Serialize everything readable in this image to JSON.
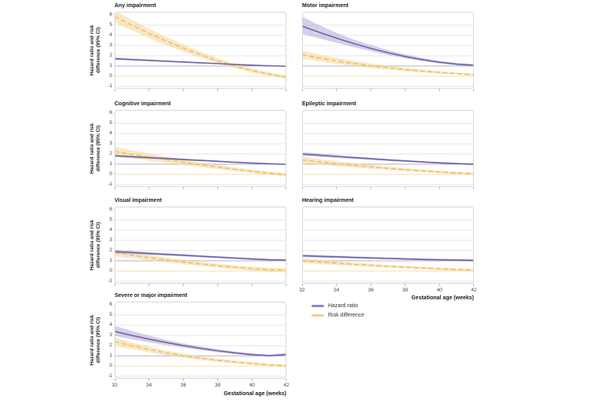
{
  "chart_data": {
    "type": "line",
    "x": [
      32,
      33,
      34,
      35,
      36,
      37,
      38,
      39,
      40,
      41,
      42
    ],
    "xticks": [
      32,
      34,
      36,
      38,
      40,
      42
    ],
    "yticks": [
      6,
      5,
      4,
      3,
      2,
      1,
      0,
      -1
    ],
    "ylim": [
      -1,
      6
    ],
    "xlim": [
      32,
      42
    ],
    "grid": "horizontal",
    "xlabel": "Gestational age (weeks)",
    "ylabel": "Hazard ratio and risk difference (95% CI)",
    "ylabel_lines": [
      "Hazard ratio and risk",
      "difference (95% CI)"
    ],
    "legend_position": "below-right-column",
    "legend": [
      {
        "label": "Hazard ratio",
        "color": "#9186c2"
      },
      {
        "label": "Risk difference",
        "color": "#f5d08b"
      }
    ],
    "reference_lines": [
      {
        "value": 1,
        "series": "Hazard ratio"
      },
      {
        "value": 0,
        "series": "Risk difference"
      }
    ],
    "panels": [
      {
        "title": "Any impairment",
        "row": 0,
        "col": 0,
        "y_axis": true,
        "x_axis": false,
        "series": {
          "hazard_ratio": {
            "y": [
              1.72,
              1.63,
              1.55,
              1.47,
              1.39,
              1.31,
              1.23,
              1.15,
              1.08,
              1.02,
              0.98
            ],
            "lo": [
              1.6,
              1.53,
              1.46,
              1.39,
              1.32,
              1.25,
              1.18,
              1.11,
              1.04,
              0.98,
              0.93
            ],
            "hi": [
              1.84,
              1.73,
              1.64,
              1.55,
              1.46,
              1.37,
              1.28,
              1.19,
              1.12,
              1.06,
              1.03
            ]
          },
          "risk_difference": {
            "y": [
              5.85,
              5.0,
              4.2,
              3.45,
              2.75,
              2.1,
              1.5,
              1.0,
              0.55,
              0.2,
              -0.1
            ],
            "lo": [
              5.25,
              4.5,
              3.75,
              3.05,
              2.4,
              1.8,
              1.25,
              0.78,
              0.35,
              0.02,
              -0.28
            ],
            "hi": [
              6.45,
              5.5,
              4.65,
              3.85,
              3.1,
              2.4,
              1.75,
              1.22,
              0.75,
              0.38,
              0.08
            ]
          }
        }
      },
      {
        "title": "Motor impairment",
        "row": 0,
        "col": 1,
        "y_axis": false,
        "x_axis": false,
        "series": {
          "hazard_ratio": {
            "y": [
              4.9,
              4.3,
              3.73,
              3.2,
              2.72,
              2.3,
              1.93,
              1.62,
              1.37,
              1.18,
              1.07
            ],
            "lo": [
              4.15,
              3.7,
              3.27,
              2.85,
              2.45,
              2.08,
              1.75,
              1.47,
              1.24,
              1.07,
              0.95
            ],
            "hi": [
              5.85,
              5.0,
              4.25,
              3.6,
              3.05,
              2.56,
              2.14,
              1.79,
              1.5,
              1.3,
              1.2
            ]
          },
          "risk_difference": {
            "y": [
              2.1,
              1.78,
              1.5,
              1.25,
              1.02,
              0.83,
              0.65,
              0.5,
              0.37,
              0.25,
              0.15
            ],
            "lo": [
              1.7,
              1.45,
              1.2,
              1.0,
              0.8,
              0.64,
              0.49,
              0.36,
              0.24,
              0.13,
              0.04
            ],
            "hi": [
              2.5,
              2.12,
              1.8,
              1.5,
              1.25,
              1.02,
              0.81,
              0.64,
              0.5,
              0.37,
              0.26
            ]
          }
        }
      },
      {
        "title": "Cognitive impairment",
        "row": 1,
        "col": 0,
        "y_axis": true,
        "x_axis": false,
        "series": {
          "hazard_ratio": {
            "y": [
              1.82,
              1.73,
              1.64,
              1.55,
              1.46,
              1.37,
              1.28,
              1.19,
              1.11,
              1.04,
              0.99
            ],
            "lo": [
              1.68,
              1.61,
              1.53,
              1.45,
              1.37,
              1.29,
              1.21,
              1.13,
              1.05,
              0.99,
              0.94
            ],
            "hi": [
              1.96,
              1.86,
              1.76,
              1.66,
              1.56,
              1.46,
              1.36,
              1.26,
              1.17,
              1.1,
              1.05
            ]
          },
          "risk_difference": {
            "y": [
              2.25,
              1.97,
              1.7,
              1.44,
              1.19,
              0.95,
              0.72,
              0.5,
              0.3,
              0.12,
              -0.04
            ],
            "lo": [
              1.8,
              1.58,
              1.35,
              1.13,
              0.92,
              0.71,
              0.51,
              0.32,
              0.14,
              -0.03,
              -0.2
            ],
            "hi": [
              2.7,
              2.37,
              2.05,
              1.75,
              1.46,
              1.19,
              0.93,
              0.68,
              0.46,
              0.27,
              0.12
            ]
          }
        }
      },
      {
        "title": "Epileptic impairment",
        "row": 1,
        "col": 1,
        "y_axis": false,
        "x_axis": false,
        "series": {
          "hazard_ratio": {
            "y": [
              2.0,
              1.88,
              1.76,
              1.64,
              1.53,
              1.42,
              1.32,
              1.22,
              1.13,
              1.05,
              0.99
            ],
            "lo": [
              1.82,
              1.72,
              1.62,
              1.52,
              1.42,
              1.32,
              1.23,
              1.14,
              1.05,
              0.97,
              0.9
            ],
            "hi": [
              2.18,
              2.05,
              1.91,
              1.77,
              1.64,
              1.52,
              1.41,
              1.31,
              1.22,
              1.14,
              1.08
            ]
          },
          "risk_difference": {
            "y": [
              1.42,
              1.23,
              1.05,
              0.89,
              0.74,
              0.6,
              0.47,
              0.35,
              0.24,
              0.14,
              0.06
            ],
            "lo": [
              1.1,
              0.96,
              0.81,
              0.68,
              0.55,
              0.43,
              0.32,
              0.21,
              0.11,
              0.02,
              -0.06
            ],
            "hi": [
              1.74,
              1.51,
              1.3,
              1.1,
              0.93,
              0.77,
              0.62,
              0.49,
              0.37,
              0.26,
              0.18
            ]
          }
        }
      },
      {
        "title": "Visual impairment",
        "row": 2,
        "col": 0,
        "y_axis": true,
        "x_axis": false,
        "series": {
          "hazard_ratio": {
            "y": [
              1.9,
              1.81,
              1.72,
              1.63,
              1.54,
              1.45,
              1.36,
              1.27,
              1.18,
              1.1,
              1.06
            ],
            "lo": [
              1.72,
              1.65,
              1.58,
              1.5,
              1.42,
              1.34,
              1.26,
              1.17,
              1.08,
              1.0,
              0.94
            ],
            "hi": [
              2.08,
              1.97,
              1.86,
              1.76,
              1.66,
              1.56,
              1.46,
              1.37,
              1.28,
              1.2,
              1.18
            ]
          },
          "risk_difference": {
            "y": [
              1.8,
              1.55,
              1.31,
              1.09,
              0.88,
              0.69,
              0.52,
              0.37,
              0.23,
              0.12,
              0.08
            ],
            "lo": [
              1.45,
              1.25,
              1.04,
              0.85,
              0.66,
              0.49,
              0.33,
              0.18,
              0.04,
              -0.08,
              -0.15
            ],
            "hi": [
              2.15,
              1.86,
              1.58,
              1.33,
              1.1,
              0.89,
              0.71,
              0.56,
              0.42,
              0.32,
              0.31
            ]
          }
        }
      },
      {
        "title": "Hearing impairment",
        "row": 2,
        "col": 1,
        "y_axis": false,
        "x_axis": true,
        "series": {
          "hazard_ratio": {
            "y": [
              1.5,
              1.44,
              1.39,
              1.33,
              1.28,
              1.23,
              1.19,
              1.14,
              1.1,
              1.07,
              1.04
            ],
            "lo": [
              1.36,
              1.31,
              1.27,
              1.22,
              1.18,
              1.13,
              1.09,
              1.05,
              1.0,
              0.96,
              0.92
            ],
            "hi": [
              1.64,
              1.57,
              1.51,
              1.44,
              1.38,
              1.33,
              1.29,
              1.23,
              1.2,
              1.18,
              1.16
            ]
          },
          "risk_difference": {
            "y": [
              1.0,
              0.88,
              0.77,
              0.66,
              0.56,
              0.47,
              0.38,
              0.3,
              0.22,
              0.15,
              0.09
            ],
            "lo": [
              0.76,
              0.67,
              0.58,
              0.49,
              0.41,
              0.33,
              0.25,
              0.18,
              0.1,
              0.03,
              -0.04
            ],
            "hi": [
              1.24,
              1.09,
              0.96,
              0.83,
              0.71,
              0.61,
              0.51,
              0.42,
              0.34,
              0.27,
              0.22
            ]
          }
        }
      },
      {
        "title": "Severe or major impairment",
        "row": 3,
        "col": 0,
        "y_axis": true,
        "x_axis": true,
        "series": {
          "hazard_ratio": {
            "y": [
              3.4,
              3.0,
              2.64,
              2.31,
              2.01,
              1.74,
              1.5,
              1.29,
              1.12,
              1.02,
              1.12
            ],
            "lo": [
              2.95,
              2.63,
              2.33,
              2.06,
              1.8,
              1.57,
              1.36,
              1.17,
              1.01,
              0.91,
              0.97
            ],
            "hi": [
              3.95,
              3.43,
              2.98,
              2.58,
              2.23,
              1.92,
              1.65,
              1.42,
              1.24,
              1.14,
              1.28
            ]
          },
          "risk_difference": {
            "y": [
              2.4,
              2.0,
              1.63,
              1.3,
              1.02,
              0.78,
              0.57,
              0.4,
              0.25,
              0.12,
              0.03
            ],
            "lo": [
              2.0,
              1.67,
              1.35,
              1.07,
              0.82,
              0.61,
              0.42,
              0.26,
              0.12,
              0.0,
              -0.1
            ],
            "hi": [
              2.8,
              2.33,
              1.91,
              1.53,
              1.22,
              0.95,
              0.72,
              0.54,
              0.38,
              0.24,
              0.16
            ]
          }
        }
      }
    ]
  },
  "colors": {
    "hazard_ratio_line": "#6f63a6",
    "hazard_ratio_band": "#b3a9d6",
    "risk_difference_line": "#edbe62",
    "risk_difference_band": "#f6d693",
    "grid": "#e4e4e4",
    "reference_hazard": "#b5b1c6",
    "reference_risk": "#f0dfae",
    "panel_border": "#d8d8d8",
    "tick": "#b0b0b0"
  }
}
